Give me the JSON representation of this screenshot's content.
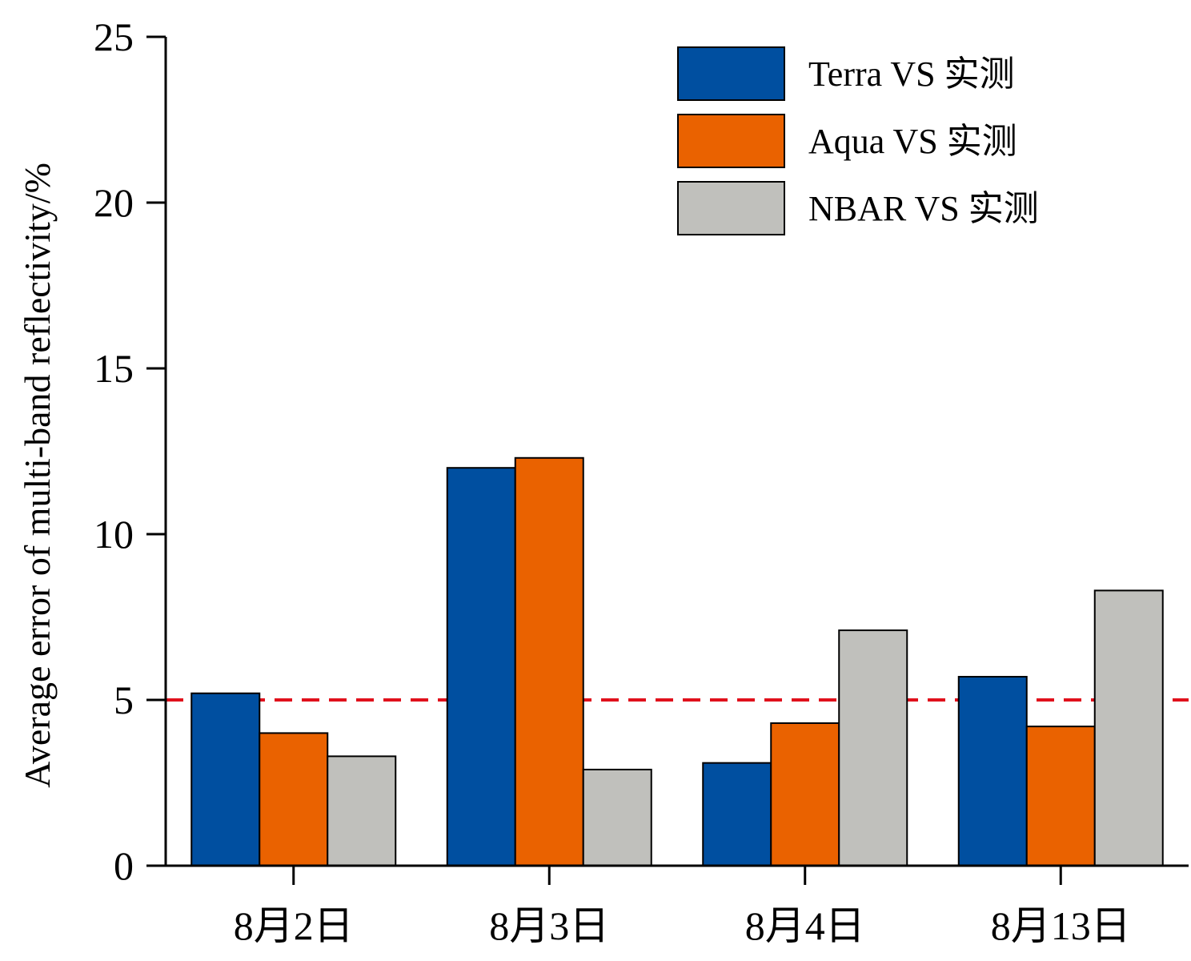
{
  "chart_data": {
    "type": "bar",
    "title": "",
    "xlabel": "",
    "ylabel": "Average error of multi-band reflectivity/%",
    "ylim": [
      0,
      25
    ],
    "yticks": [
      0,
      5,
      10,
      15,
      20,
      25
    ],
    "grid": false,
    "legend_position": "top-right",
    "categories": [
      "8月2日",
      "8月3日",
      "8月4日",
      "8月13日"
    ],
    "series": [
      {
        "name": "Terra VS 实测",
        "color": "#004fa0",
        "values": [
          5.2,
          12.0,
          3.1,
          5.7
        ]
      },
      {
        "name": "Aqua VS 实测",
        "color": "#ea6200",
        "values": [
          4.0,
          12.3,
          4.3,
          4.2
        ]
      },
      {
        "name": "NBAR VS 实测",
        "color": "#c0c0bc",
        "values": [
          3.3,
          2.9,
          7.1,
          8.3
        ]
      }
    ],
    "reference_line": {
      "value": 5,
      "color": "#e0101c",
      "style": "dashed"
    }
  }
}
